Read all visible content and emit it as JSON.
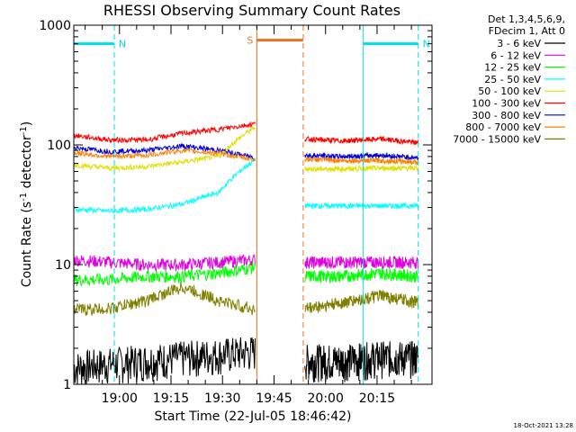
{
  "chart_data": {
    "type": "line",
    "title": "RHESSI Observing Summary Count Rates",
    "xlabel": "Start Time (22-Jul-05 18:46:42)",
    "ylabel_prefix": "Count Rate (s",
    "ylabel_sup1": "-1",
    "ylabel_mid": " detector",
    "ylabel_sup2": "-1",
    "ylabel_suffix": ")",
    "yscale": "log",
    "ylim": [
      1,
      1000
    ],
    "xlim": [
      "18:46:42",
      "20:31:00"
    ],
    "xticks": [
      "19:00",
      "19:15",
      "19:30",
      "19:45",
      "20:00",
      "20:15"
    ],
    "yticks": [
      "1",
      "10",
      "100",
      "1000"
    ],
    "grid": false,
    "legend_header": [
      "Det 1,3,4,5,6,9,",
      "FDecim 1, Att 0"
    ],
    "legend_position": "right",
    "timestamp": "18-Oct-2021 13:28",
    "annotations": [
      {
        "label": "N",
        "color": "#00e0e8",
        "span": [
          "18:46:42",
          "18:58:30"
        ],
        "y": 700
      },
      {
        "label": "N",
        "color": "#00e0e8",
        "span": [
          "20:11:00",
          "20:27:00"
        ],
        "y": 700
      },
      {
        "label": "S",
        "color": "#f07020",
        "span": [
          "19:40:00",
          "19:53:30"
        ],
        "y": 750
      }
    ],
    "segments": [
      {
        "start": "18:46:42",
        "end": "19:39:30"
      },
      {
        "start": "19:54:00",
        "end": "20:27:00"
      }
    ],
    "series": [
      {
        "name": "3 - 6 keV",
        "color": "#000000",
        "before": [
          1.4,
          1.5,
          1.6,
          1.7,
          1.8,
          1.9
        ],
        "after": [
          1.6,
          1.6,
          1.7,
          1.7
        ]
      },
      {
        "name": "6 - 12 keV",
        "color": "#e000e0",
        "before": [
          11,
          10.5,
          10,
          10,
          10.5,
          11
        ],
        "after": [
          10.5,
          10.5,
          10.5,
          10.5
        ]
      },
      {
        "name": "12 - 25 keV",
        "color": "#00ff00",
        "before": [
          7.5,
          7.5,
          8,
          8,
          8.5,
          9.5
        ],
        "after": [
          8,
          8,
          8.5,
          8
        ]
      },
      {
        "name": "25 - 50 keV",
        "color": "#00ffff",
        "before": [
          29,
          28,
          29,
          32,
          40,
          75
        ],
        "after": [
          31,
          31,
          31,
          31
        ]
      },
      {
        "name": "50 - 100 keV",
        "color": "#e0e000",
        "before": [
          68,
          64,
          66,
          72,
          80,
          140
        ],
        "after": [
          63,
          63,
          64,
          64
        ]
      },
      {
        "name": "100 - 300 keV",
        "color": "#ff0000",
        "before": [
          120,
          110,
          110,
          125,
          135,
          150
        ],
        "after": [
          112,
          108,
          112,
          104
        ]
      },
      {
        "name": "300 - 800 keV",
        "color": "#0000e0",
        "before": [
          95,
          88,
          90,
          98,
          90,
          78
        ],
        "after": [
          82,
          80,
          82,
          78
        ]
      },
      {
        "name": "800 - 7000 keV",
        "color": "#ff8000",
        "before": [
          86,
          80,
          82,
          90,
          85,
          75
        ],
        "after": [
          76,
          74,
          74,
          72
        ]
      },
      {
        "name": "7000 - 15000 keV",
        "color": "#808000",
        "before": [
          4.2,
          4.3,
          5,
          6.5,
          5,
          4.2
        ],
        "after": [
          4.3,
          4.8,
          5.5,
          4.8
        ]
      }
    ]
  }
}
